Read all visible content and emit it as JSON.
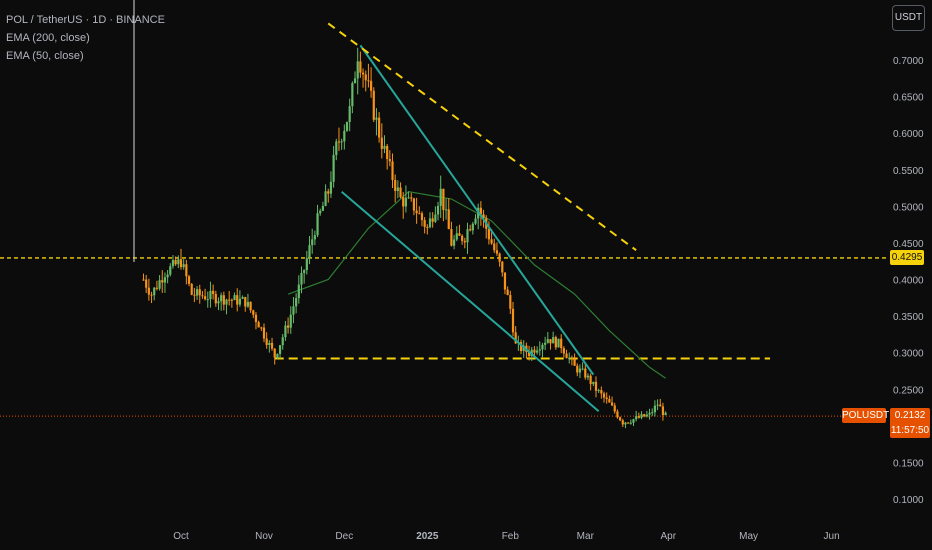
{
  "legend": {
    "symbol": "POL / TetherUS · 1D · BINANCE",
    "ema200": "EMA (200, close)",
    "ema50": "EMA (50, close)"
  },
  "axis_unit_button": "USDT",
  "price_tags": {
    "level": "0.4295",
    "symbol": "POLUSDT",
    "last_price": "0.2132",
    "countdown": "11:57:50"
  },
  "colors": {
    "background": "#0c0c0c",
    "candle_up": "#66bb6a",
    "candle_down": "#f7931a",
    "trendline": "#26a69a",
    "level_line": "#f5d20a",
    "ema50": "#2e7d32",
    "last_price": "#e65100"
  },
  "chart_data": {
    "type": "candlestick",
    "y_ticks": [
      "0.7000",
      "0.6500",
      "0.6000",
      "0.5500",
      "0.5000",
      "0.4500",
      "0.4000",
      "0.3500",
      "0.3000",
      "0.2500",
      "0.2000",
      "0.1500",
      "0.1000"
    ],
    "x_ticks": [
      "Oct",
      "Nov",
      "Dec",
      "2025",
      "Feb",
      "Mar",
      "Apr",
      "May",
      "Jun"
    ],
    "ylim": [
      0.07,
      0.73
    ],
    "horizontal_levels": [
      0.4295,
      0.292
    ],
    "last_price": 0.2132,
    "price_path": [
      [
        "2024-09-17",
        0.4
      ],
      [
        "2024-09-20",
        0.38
      ],
      [
        "2024-09-25",
        0.41
      ],
      [
        "2024-10-01",
        0.425
      ],
      [
        "2024-10-05",
        0.38
      ],
      [
        "2024-10-15",
        0.375
      ],
      [
        "2024-10-25",
        0.37
      ],
      [
        "2024-10-30",
        0.34
      ],
      [
        "2024-11-05",
        0.295
      ],
      [
        "2024-11-10",
        0.34
      ],
      [
        "2024-11-15",
        0.4
      ],
      [
        "2024-11-20",
        0.47
      ],
      [
        "2024-11-25",
        0.52
      ],
      [
        "2024-11-28",
        0.58
      ],
      [
        "2024-12-03",
        0.63
      ],
      [
        "2024-12-06",
        0.71
      ],
      [
        "2024-12-10",
        0.66
      ],
      [
        "2024-12-14",
        0.6
      ],
      [
        "2024-12-18",
        0.55
      ],
      [
        "2024-12-22",
        0.51
      ],
      [
        "2024-12-27",
        0.5
      ],
      [
        "2025-01-01",
        0.47
      ],
      [
        "2025-01-06",
        0.52
      ],
      [
        "2025-01-10",
        0.45
      ],
      [
        "2025-01-15",
        0.46
      ],
      [
        "2025-01-20",
        0.5
      ],
      [
        "2025-01-24",
        0.46
      ],
      [
        "2025-01-28",
        0.42
      ],
      [
        "2025-02-01",
        0.36
      ],
      [
        "2025-02-03",
        0.31
      ],
      [
        "2025-02-08",
        0.3
      ],
      [
        "2025-02-15",
        0.32
      ],
      [
        "2025-02-20",
        0.31
      ],
      [
        "2025-02-25",
        0.28
      ],
      [
        "2025-03-01",
        0.27
      ],
      [
        "2025-03-05",
        0.25
      ],
      [
        "2025-03-10",
        0.23
      ],
      [
        "2025-03-15",
        0.205
      ],
      [
        "2025-03-20",
        0.21
      ],
      [
        "2025-03-25",
        0.215
      ],
      [
        "2025-03-28",
        0.23
      ],
      [
        "2025-03-31",
        0.2132
      ]
    ],
    "ema50_path": [
      [
        "2024-11-10",
        0.38
      ],
      [
        "2024-11-25",
        0.4
      ],
      [
        "2024-12-10",
        0.47
      ],
      [
        "2024-12-25",
        0.52
      ],
      [
        "2025-01-10",
        0.51
      ],
      [
        "2025-01-25",
        0.48
      ],
      [
        "2025-02-10",
        0.42
      ],
      [
        "2025-02-25",
        0.38
      ],
      [
        "2025-03-10",
        0.33
      ],
      [
        "2025-03-25",
        0.28
      ],
      [
        "2025-03-31",
        0.265
      ]
    ],
    "trendlines": [
      {
        "from": [
          "2024-12-07",
          0.72
        ],
        "to": [
          "2025-03-04",
          0.27
        ]
      },
      {
        "from": [
          "2024-11-30",
          0.52
        ],
        "to": [
          "2025-03-06",
          0.22
        ]
      },
      {
        "from": [
          "2024-11-25",
          0.75
        ],
        "to": [
          "2025-03-20",
          0.44
        ],
        "style": "dashed"
      }
    ]
  }
}
